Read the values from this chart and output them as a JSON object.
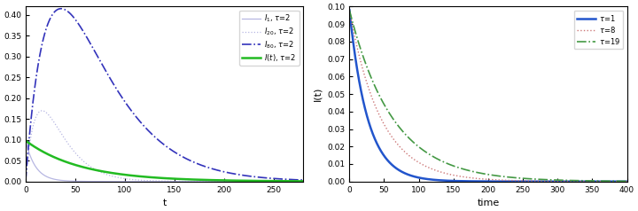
{
  "left_xlim": [
    0,
    280
  ],
  "left_ylim": [
    0,
    0.42
  ],
  "left_xlabel": "t",
  "left_yticks": [
    0,
    0.05,
    0.1,
    0.15,
    0.2,
    0.25,
    0.3,
    0.35,
    0.4
  ],
  "left_xticks": [
    0,
    50,
    100,
    150,
    200,
    250
  ],
  "right_xlim": [
    0,
    400
  ],
  "right_ylim": [
    0,
    0.1
  ],
  "right_xlabel": "time",
  "right_ylabel": "I(t)",
  "right_yticks": [
    0,
    0.01,
    0.02,
    0.03,
    0.04,
    0.05,
    0.06,
    0.07,
    0.08,
    0.09,
    0.1
  ],
  "right_xticks": [
    0,
    50,
    100,
    150,
    200,
    250,
    300,
    350,
    400
  ],
  "legend_left": [
    {
      "label": "$I_1$, $\\tau$=2",
      "color": "#aaaadd",
      "lw": 0.9,
      "ls": "-",
      "alpha": 0.85
    },
    {
      "label": "$I_{20}$, $\\tau$=2",
      "color": "#aaaadd",
      "lw": 0.9,
      "ls": ":",
      "alpha": 0.85
    },
    {
      "label": "$I_{80}$, $\\tau$=2",
      "color": "#3333bb",
      "lw": 1.2,
      "ls": "-.",
      "alpha": 1.0
    },
    {
      "label": "$I(t)$, $\\tau$=2",
      "color": "#22bb22",
      "lw": 1.8,
      "ls": "-",
      "alpha": 1.0
    }
  ],
  "legend_right": [
    {
      "label": "$\\tau$=1",
      "color": "#2255cc",
      "lw": 1.8,
      "ls": "-",
      "alpha": 1.0
    },
    {
      "label": "$\\tau$=8",
      "color": "#cc7777",
      "lw": 1.0,
      "ls": ":",
      "alpha": 1.0
    },
    {
      "label": "$\\tau$=19",
      "color": "#449944",
      "lw": 1.2,
      "ls": "-.",
      "alpha": 1.0
    }
  ],
  "fig_width": 7.2,
  "fig_height": 2.38,
  "dpi": 100
}
